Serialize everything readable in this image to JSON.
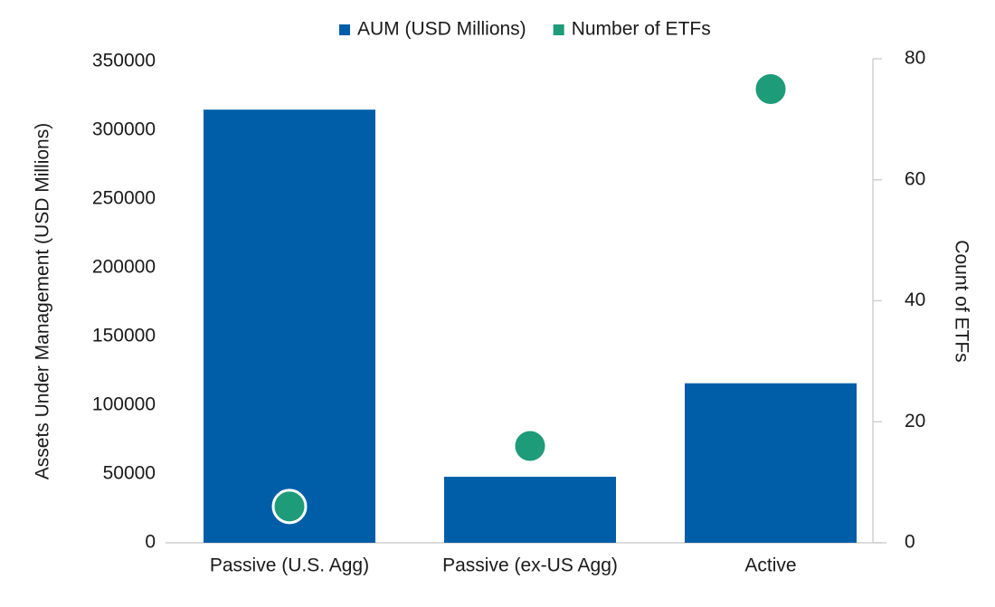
{
  "chart_data": {
    "type": "bar",
    "categories": [
      "Passive (U.S. Agg)",
      "Passive (ex-US Agg)",
      "Active"
    ],
    "series": [
      {
        "name": "AUM (USD Millions)",
        "color": "#005ea8",
        "type": "bar",
        "values": [
          315000,
          48000,
          116000
        ]
      },
      {
        "name": "Number of ETFs",
        "color": "#1e9b78",
        "type": "scatter",
        "axis": "y2",
        "values": [
          6,
          16,
          75
        ]
      }
    ],
    "y_label": "Assets Under Management (USD Millions)",
    "y2_label": "Count of ETFs",
    "ylim": [
      0,
      350000
    ],
    "yticks": [
      0,
      50000,
      100000,
      150000,
      200000,
      250000,
      300000,
      350000
    ],
    "y2lim": [
      0,
      80
    ],
    "y2ticks": [
      0,
      20,
      40,
      60,
      80
    ],
    "legend": "top",
    "grid": false
  }
}
